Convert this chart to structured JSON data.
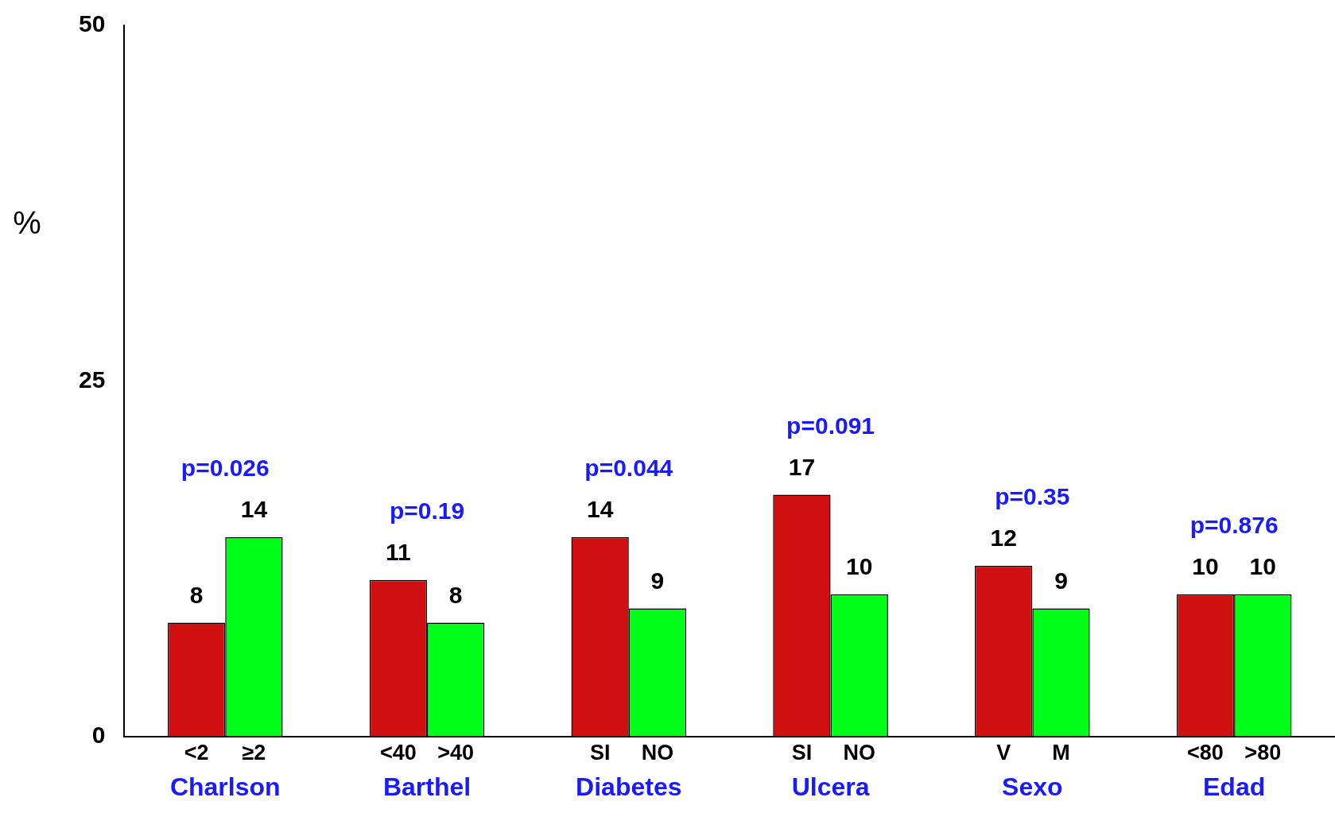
{
  "chart_data": {
    "type": "bar",
    "ylabel": "%",
    "categories": [
      "Charlson",
      "Barthel",
      "Diabetes",
      "Ulcera",
      "Sexo",
      "Edad"
    ],
    "series": [
      {
        "color": "#d01010",
        "values": [
          8,
          11,
          14,
          17,
          12,
          10
        ]
      },
      {
        "color": "#00ff19",
        "values": [
          14,
          8,
          9,
          10,
          9,
          10
        ]
      }
    ],
    "ylim": [
      0,
      50
    ],
    "yticks": [
      0,
      25,
      50
    ],
    "grid": false,
    "legend": false,
    "data_labels": true,
    "annotations": [
      "p=0.026",
      "p=0.19",
      "p=0.044",
      "p=0.091",
      "p=0.35",
      "p=0.876",
      "<2",
      "≥2",
      "<40",
      ">40",
      "SI",
      "NO",
      "SI",
      "NO",
      "V",
      "M",
      "<80",
      ">80"
    ]
  }
}
